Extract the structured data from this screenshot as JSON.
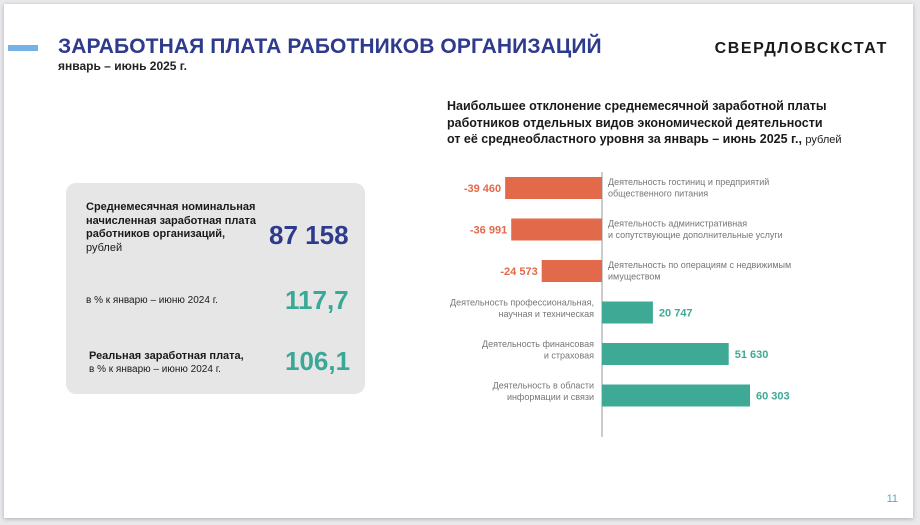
{
  "header": {
    "title": "ЗАРАБОТНАЯ ПЛАТА РАБОТНИКОВ ОРГАНИЗАЦИЙ",
    "subtitle": "январь – июнь 2025 г.",
    "logo": "СВЕРДЛОВСКСТАТ"
  },
  "card": {
    "label1": "Среднемесячная номинальная начисленная заработная плата работников организаций,",
    "label1_unit": "рублей",
    "value1": "87 158",
    "label2": "в % к январю – июню 2024 г.",
    "value2": "117,7",
    "label3": "Реальная заработная плата,",
    "label3_sub": "в % к январю – июню 2024 г.",
    "value3": "106,1"
  },
  "chart_title": {
    "line1": "Наибольшее отклонение среднемесячной заработной платы",
    "line2": "работников отдельных видов экономической деятельности",
    "line3": "от её среднеобластного уровня за январь – июнь 2025 г.,",
    "units": "рублей"
  },
  "colors": {
    "negative": "#e2694a",
    "positive": "#3ea995",
    "title": "#2e3a8c",
    "accent": "#76b1e6"
  },
  "chart_data": {
    "type": "bar",
    "orientation": "horizontal",
    "categories": [
      [
        "Деятельность гостиниц и предприятий",
        "общественного питания"
      ],
      [
        "Деятельность административная",
        "и сопутствующие дополнительные услуги"
      ],
      [
        "Деятельность по операциям с недвижимым",
        "имуществом"
      ],
      [
        "Деятельность профессиональная,",
        "научная и техническая"
      ],
      [
        "Деятельность финансовая",
        "и страховая"
      ],
      [
        "Деятельность в области",
        "информации и связи"
      ]
    ],
    "values": [
      -39460,
      -36991,
      -24573,
      20747,
      51630,
      60303
    ],
    "value_labels": [
      "-39 460",
      "-36 991",
      "-24 573",
      "20 747",
      "51 630",
      "60 303"
    ]
  },
  "footer": {
    "page_number": "11"
  }
}
